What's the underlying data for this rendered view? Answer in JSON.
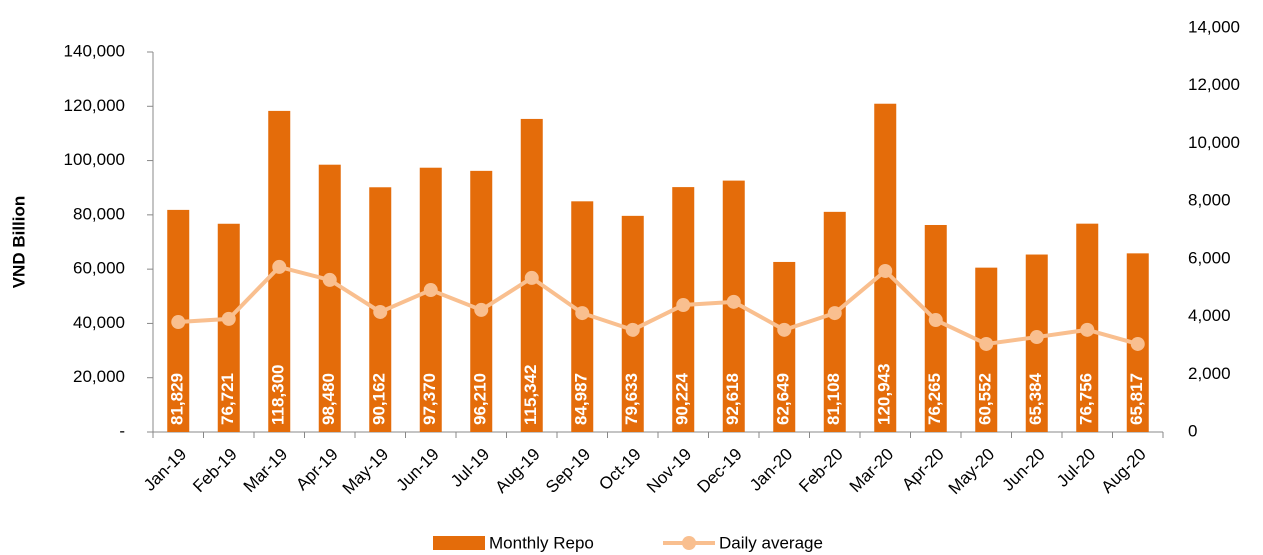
{
  "chart_data": {
    "type": "bar-line",
    "y_label": "VND Billion",
    "categories": [
      "Jan-19",
      "Feb-19",
      "Mar-19",
      "Apr-19",
      "May-19",
      "Jun-19",
      "Jul-19",
      "Aug-19",
      "Sep-19",
      "Oct-19",
      "Nov-19",
      "Dec-19",
      "Jan-20",
      "Feb-20",
      "Mar-20",
      "Apr-20",
      "May-20",
      "Jun-20",
      "Jul-20",
      "Aug-20"
    ],
    "series": [
      {
        "name": "Monthly Repo",
        "color": "#e46c0a",
        "kind": "bar",
        "values": [
          81829,
          76721,
          118300,
          98480,
          90162,
          97370,
          96210,
          115342,
          84987,
          79633,
          90224,
          92618,
          62649,
          81108,
          120943,
          76265,
          60552,
          65384,
          76756,
          65817
        ],
        "value_labels": [
          "81,829",
          "76,721",
          "118,300",
          "98,480",
          "90,162",
          "97,370",
          "96,210",
          "115,342",
          "84,987",
          "79,633",
          "90,224",
          "92,618",
          "62,649",
          "81,108",
          "120,943",
          "76,265",
          "60,552",
          "65,384",
          "76,756",
          "65,817"
        ]
      },
      {
        "name": "Daily average",
        "color": "#f9bf8f",
        "kind": "line",
        "axis": "y2",
        "values": [
          3810,
          3920,
          5720,
          5270,
          4160,
          4920,
          4230,
          5340,
          4120,
          3540,
          4400,
          4510,
          3540,
          4120,
          5580,
          3880,
          3050,
          3290,
          3540,
          3050
        ]
      }
    ],
    "ylim": [
      0,
      140000
    ],
    "yticks": [
      {
        "value": 0,
        "label": "-"
      },
      {
        "value": 20000,
        "label": "20,000"
      },
      {
        "value": 40000,
        "label": "40,000"
      },
      {
        "value": 60000,
        "label": "60,000"
      },
      {
        "value": 80000,
        "label": "80,000"
      },
      {
        "value": 100000,
        "label": "100,000"
      },
      {
        "value": 120000,
        "label": "120,000"
      },
      {
        "value": 140000,
        "label": "140,000"
      }
    ],
    "y2lim": [
      0,
      14000
    ],
    "y2ticks": [
      0,
      {
        "value": 2000,
        "label": "2,000"
      },
      {
        "value": 4000,
        "label": "4,000"
      },
      {
        "value": 6000,
        "label": "6,000"
      },
      {
        "value": 8000,
        "label": "8,000"
      },
      {
        "value": 10000,
        "label": "10,000"
      },
      {
        "value": 12000,
        "label": "12,000"
      },
      {
        "value": 14000,
        "label": "14,000"
      }
    ]
  }
}
